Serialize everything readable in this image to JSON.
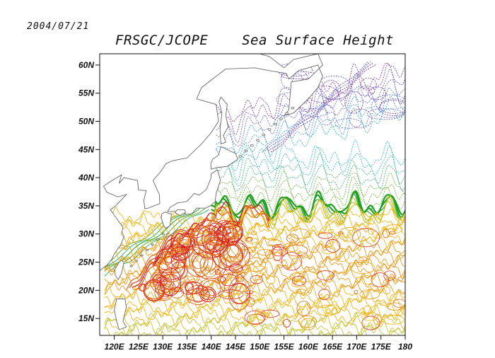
{
  "header": {
    "date": "2004/07/21",
    "title": "FRSGC/JCOPE    Sea Surface Height"
  },
  "map": {
    "lat_range": [
      12,
      62
    ],
    "lon_range": [
      117,
      180
    ],
    "lat_ticks": [
      {
        "value": 60,
        "label": "60N"
      },
      {
        "value": 55,
        "label": "55N"
      },
      {
        "value": 50,
        "label": "50N"
      },
      {
        "value": 45,
        "label": "45N"
      },
      {
        "value": 40,
        "label": "40N"
      },
      {
        "value": 35,
        "label": "35N"
      },
      {
        "value": 30,
        "label": "30N"
      },
      {
        "value": 25,
        "label": "25N"
      },
      {
        "value": 20,
        "label": "20N"
      },
      {
        "value": 15,
        "label": "15N"
      }
    ],
    "lon_ticks": [
      {
        "value": 120,
        "label": "120E"
      },
      {
        "value": 125,
        "label": "125E"
      },
      {
        "value": 130,
        "label": "130E"
      },
      {
        "value": 135,
        "label": "135E"
      },
      {
        "value": 140,
        "label": "140E"
      },
      {
        "value": 145,
        "label": "145E"
      },
      {
        "value": 150,
        "label": "150E"
      },
      {
        "value": 155,
        "label": "155E"
      },
      {
        "value": 160,
        "label": "160E"
      },
      {
        "value": 165,
        "label": "165E"
      },
      {
        "value": 170,
        "label": "170E"
      },
      {
        "value": 175,
        "label": "175E"
      },
      {
        "value": 180,
        "label": "180"
      }
    ],
    "contour_colors": [
      "#7030a0",
      "#5a5fd0",
      "#3a8fe0",
      "#20b0c0",
      "#30b070",
      "#60b030",
      "#20a020",
      "#c0c020",
      "#f0b000",
      "#f09000",
      "#e06010",
      "#e03020",
      "#d01020"
    ],
    "coast_color": "#555555"
  }
}
